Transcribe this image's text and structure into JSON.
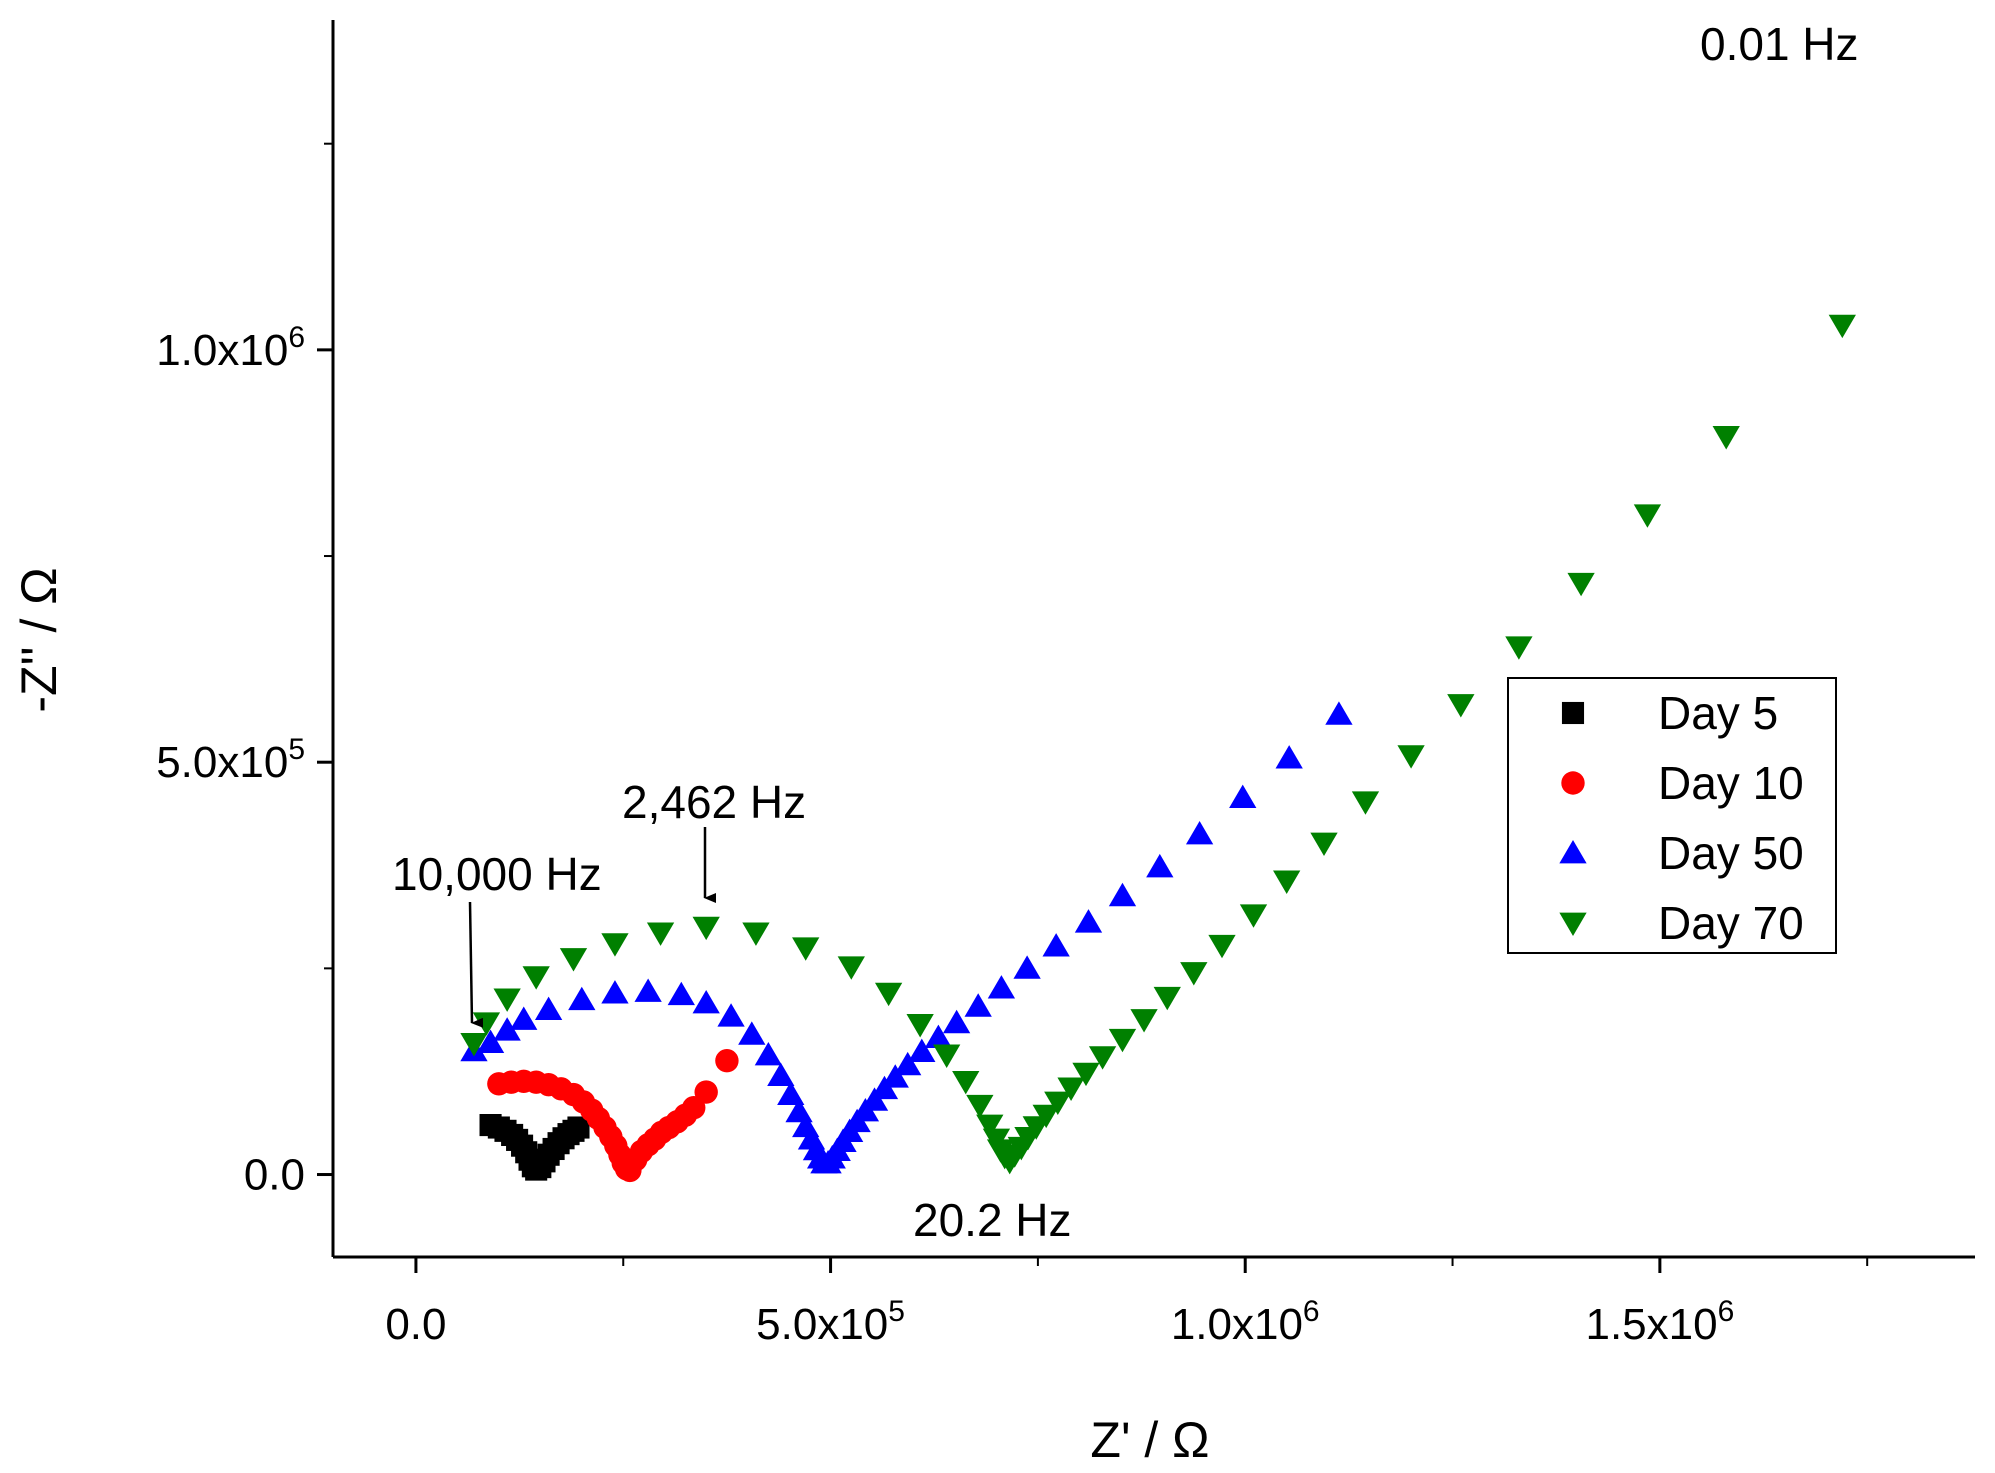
{
  "chart_data": {
    "type": "scatter",
    "title": "",
    "xlabel": "Z' / Ω",
    "ylabel": "-Z'' / Ω",
    "xlim": [
      -100000,
      1880000
    ],
    "ylim": [
      -100000,
      1400000
    ],
    "grid": false,
    "legend_position": "right",
    "x_ticks": [
      {
        "value": 0,
        "label": "0.0",
        "sup": ""
      },
      {
        "value": 500000,
        "label": "5.0x10",
        "sup": "5"
      },
      {
        "value": 1000000,
        "label": "1.0x10",
        "sup": "6"
      },
      {
        "value": 1500000,
        "label": "1.5x10",
        "sup": "6"
      }
    ],
    "y_ticks": [
      {
        "value": 0,
        "label": "0.0",
        "sup": ""
      },
      {
        "value": 500000,
        "label": "5.0x10",
        "sup": "5"
      },
      {
        "value": 1000000,
        "label": "1.0x10",
        "sup": "6"
      }
    ],
    "series": [
      {
        "name": "Day 5",
        "marker": "square",
        "color": "#000000",
        "x": [
          90000,
          100000,
          108000,
          116000,
          122000,
          128000,
          133000,
          137000,
          141000,
          145000,
          150000,
          155000,
          160000,
          166000,
          172000,
          178000,
          184000,
          190000,
          196000
        ],
        "y": [
          60000,
          57000,
          53000,
          48000,
          42000,
          35000,
          27000,
          18000,
          10000,
          6000,
          9000,
          16000,
          24000,
          31000,
          38000,
          44000,
          49000,
          53000,
          57000
        ]
      },
      {
        "name": "Day 10",
        "marker": "circle",
        "color": "#ff0000",
        "x": [
          100000,
          115000,
          130000,
          145000,
          160000,
          175000,
          190000,
          202000,
          212000,
          220000,
          228000,
          235000,
          241000,
          246000,
          250000,
          254000,
          258000,
          265000,
          272000,
          280000,
          288000,
          296000,
          305000,
          315000,
          325000,
          335000,
          350000,
          375000
        ],
        "y": [
          110000,
          112000,
          113000,
          112000,
          109000,
          104000,
          97000,
          88000,
          78000,
          68000,
          57000,
          46000,
          35000,
          24000,
          14000,
          7000,
          5000,
          18000,
          28000,
          36000,
          43000,
          51000,
          57000,
          64000,
          72000,
          81000,
          100000,
          138000
        ]
      },
      {
        "name": "Day 50",
        "marker": "triangle-up",
        "color": "#0000ff",
        "x": [
          70000,
          90000,
          110000,
          130000,
          160000,
          200000,
          240000,
          280000,
          320000,
          350000,
          380000,
          405000,
          425000,
          440000,
          452000,
          462000,
          470000,
          477000,
          483000,
          488000,
          492000,
          497000,
          502000,
          508000,
          515000,
          523000,
          532000,
          542000,
          553000,
          565000,
          578000,
          593000,
          610000,
          630000,
          652000,
          678000,
          706000,
          737000,
          772000,
          811000,
          852000,
          897000,
          945000,
          997000,
          1053000,
          1113000
        ],
        "y": [
          150000,
          160000,
          175000,
          188000,
          200000,
          212000,
          220000,
          222000,
          218000,
          208000,
          192000,
          170000,
          145000,
          120000,
          97000,
          76000,
          58000,
          43000,
          30000,
          20000,
          14000,
          14000,
          20000,
          29000,
          40000,
          52000,
          64000,
          77000,
          90000,
          104000,
          118000,
          133000,
          149000,
          166000,
          184000,
          204000,
          226000,
          250000,
          277000,
          306000,
          338000,
          373000,
          413000,
          457000,
          505000,
          558000
        ]
      },
      {
        "name": "Day 70",
        "marker": "triangle-down",
        "color": "#008000",
        "x": [
          70000,
          85000,
          110000,
          145000,
          190000,
          240000,
          295000,
          350000,
          410000,
          470000,
          525000,
          570000,
          608000,
          640000,
          663000,
          680000,
          692000,
          700000,
          705000,
          710000,
          716000,
          722000,
          730000,
          738000,
          748000,
          760000,
          774000,
          790000,
          808000,
          828000,
          852000,
          878000,
          906000,
          938000,
          972000,
          1010000,
          1050000,
          1095000,
          1145000,
          1200000,
          1260000,
          1330000,
          1405000,
          1485000,
          1580000,
          1720000
        ],
        "y": [
          159000,
          184000,
          213000,
          240000,
          262000,
          280000,
          293000,
          300000,
          293000,
          275000,
          252000,
          220000,
          182000,
          145000,
          113000,
          84000,
          60000,
          43000,
          30000,
          22000,
          16000,
          24000,
          33000,
          45000,
          58000,
          72000,
          88000,
          105000,
          123000,
          143000,
          164000,
          188000,
          215000,
          245000,
          278000,
          315000,
          356000,
          402000,
          452000,
          508000,
          570000,
          640000,
          717000,
          800000,
          895000,
          1030000
        ]
      }
    ],
    "annotations": [
      {
        "text": "0.01 Hz",
        "arrow": false
      },
      {
        "text": "2,462 Hz",
        "arrow": true
      },
      {
        "text": "10,000 Hz",
        "arrow": true
      },
      {
        "text": "20.2 Hz",
        "arrow": false
      }
    ]
  }
}
